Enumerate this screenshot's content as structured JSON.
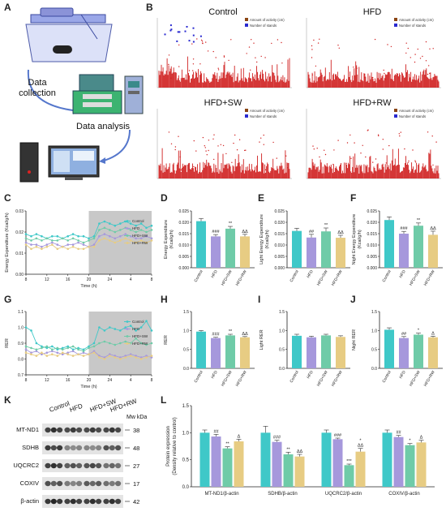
{
  "panel_letters": [
    "A",
    "B",
    "C",
    "D",
    "E",
    "F",
    "G",
    "H",
    "I",
    "J",
    "K",
    "L"
  ],
  "panelA": {
    "data_collection": "Data\ncollection",
    "data_analysis": "Data analysis"
  },
  "panelB": {
    "legend": [
      "Amount of activity (cm)",
      "Number of stands"
    ],
    "titles": [
      "Control",
      "HFD",
      "HFD+SW",
      "HFD+RW"
    ]
  },
  "colors": {
    "control": "#3fc8c8",
    "hfd": "#a698dc",
    "hfd_sw": "#6fcba8",
    "hfd_rw": "#e7cc83",
    "activity": "#d02020",
    "stands": "#2a2ad0",
    "night": "#c8c8c8"
  },
  "groups": [
    "Control",
    "HFD",
    "HFD+SW",
    "HFD+RW"
  ],
  "chart_data": [
    {
      "id": "C",
      "type": "line",
      "ylabel": "Energy Expenditure (Kcal/g/h)",
      "xlabel": "Time (h)",
      "xticks": [
        "8",
        "12",
        "16",
        "20",
        "24",
        "4",
        "8"
      ],
      "ylim": [
        0,
        0.03
      ],
      "yticks": [
        "0.00",
        "0.01",
        "0.02",
        "0.03"
      ],
      "series": [
        {
          "name": "Control",
          "values": [
            0.019,
            0.018,
            0.019,
            0.018,
            0.017,
            0.018,
            0.018,
            0.017,
            0.018,
            0.019,
            0.018,
            0.018,
            0.017,
            0.018,
            0.024,
            0.025,
            0.024,
            0.023,
            0.024,
            0.025,
            0.024,
            0.023,
            0.024,
            0.022,
            0.023
          ]
        },
        {
          "name": "HFD",
          "values": [
            0.015,
            0.014,
            0.014,
            0.013,
            0.014,
            0.015,
            0.014,
            0.013,
            0.014,
            0.014,
            0.015,
            0.014,
            0.013,
            0.014,
            0.018,
            0.019,
            0.018,
            0.017,
            0.018,
            0.019,
            0.018,
            0.017,
            0.017,
            0.018,
            0.017
          ]
        },
        {
          "name": "HFD+SW",
          "values": [
            0.017,
            0.016,
            0.017,
            0.016,
            0.017,
            0.016,
            0.016,
            0.017,
            0.016,
            0.017,
            0.016,
            0.015,
            0.016,
            0.017,
            0.021,
            0.022,
            0.021,
            0.02,
            0.021,
            0.022,
            0.021,
            0.02,
            0.021,
            0.02,
            0.021
          ]
        },
        {
          "name": "HFD+RW",
          "values": [
            0.014,
            0.012,
            0.013,
            0.012,
            0.013,
            0.014,
            0.012,
            0.013,
            0.012,
            0.013,
            0.012,
            0.012,
            0.013,
            0.013,
            0.016,
            0.017,
            0.016,
            0.015,
            0.016,
            0.017,
            0.016,
            0.015,
            0.016,
            0.015,
            0.016
          ]
        }
      ]
    },
    {
      "id": "D",
      "type": "bar",
      "ylabel": "Energy Expenditure (Kcal/g/h)",
      "ylim": [
        0,
        0.025
      ],
      "yticks": [
        "0.000",
        "0.005",
        "0.010",
        "0.015",
        "0.020",
        "0.025"
      ],
      "values": [
        0.0205,
        0.0138,
        0.0172,
        0.0138
      ],
      "errors": [
        0.0012,
        0.0008,
        0.001,
        0.0009
      ],
      "marks": [
        "",
        "###",
        "**",
        "ΔΔ"
      ]
    },
    {
      "id": "E",
      "type": "bar",
      "ylabel": "Light Energy Expenditure (Kcal/g/h)",
      "ylim": [
        0,
        0.025
      ],
      "yticks": [
        "0.000",
        "0.005",
        "0.010",
        "0.015",
        "0.020",
        "0.025"
      ],
      "values": [
        0.0162,
        0.0133,
        0.016,
        0.0132
      ],
      "errors": [
        0.0012,
        0.0014,
        0.0015,
        0.0011
      ],
      "marks": [
        "",
        "##",
        "**",
        "ΔΔ"
      ]
    },
    {
      "id": "F",
      "type": "bar",
      "ylabel": "Night Energy Expenditure (Kcal/g/h)",
      "ylim": [
        0,
        0.025
      ],
      "yticks": [
        "0.000",
        "0.005",
        "0.010",
        "0.015",
        "0.020",
        "0.025"
      ],
      "values": [
        0.021,
        0.015,
        0.0185,
        0.0145
      ],
      "errors": [
        0.0014,
        0.001,
        0.0012,
        0.0016
      ],
      "marks": [
        "",
        "###",
        "**",
        "ΔΔ"
      ]
    },
    {
      "id": "G",
      "type": "line",
      "ylabel": "RER",
      "xlabel": "Time (h)",
      "xticks": [
        "8",
        "12",
        "16",
        "20",
        "24",
        "4",
        "8"
      ],
      "ylim": [
        0.7,
        1.1
      ],
      "yticks": [
        "0.7",
        "0.8",
        "0.9",
        "1.0",
        "1.1"
      ],
      "series": [
        {
          "name": "Control",
          "values": [
            1.0,
            0.98,
            0.9,
            0.88,
            0.87,
            0.88,
            0.86,
            0.87,
            0.88,
            0.86,
            0.87,
            0.86,
            0.88,
            0.9,
            1.0,
            0.98,
            1.0,
            0.99,
            0.98,
            1.0,
            1.01,
            0.98,
            1.0,
            1.04,
            0.98
          ]
        },
        {
          "name": "HFD",
          "values": [
            0.86,
            0.84,
            0.85,
            0.83,
            0.84,
            0.85,
            0.84,
            0.83,
            0.84,
            0.85,
            0.83,
            0.84,
            0.83,
            0.85,
            0.82,
            0.81,
            0.83,
            0.82,
            0.81,
            0.82,
            0.83,
            0.82,
            0.81,
            0.82,
            0.81
          ]
        },
        {
          "name": "HFD+SW",
          "values": [
            0.88,
            0.87,
            0.86,
            0.87,
            0.88,
            0.86,
            0.87,
            0.86,
            0.87,
            0.88,
            0.86,
            0.85,
            0.87,
            0.88,
            0.9,
            0.91,
            0.9,
            0.89,
            0.9,
            0.91,
            0.9,
            0.93,
            0.9,
            0.89,
            0.9
          ]
        },
        {
          "name": "HFD+RW",
          "values": [
            0.84,
            0.83,
            0.82,
            0.84,
            0.82,
            0.83,
            0.82,
            0.84,
            0.83,
            0.82,
            0.83,
            0.82,
            0.83,
            0.84,
            0.81,
            0.8,
            0.82,
            0.81,
            0.8,
            0.81,
            0.82,
            0.81,
            0.8,
            0.81,
            0.82
          ]
        }
      ]
    },
    {
      "id": "H",
      "type": "bar",
      "ylabel": "RER",
      "ylim": [
        0,
        1.5
      ],
      "yticks": [
        "0.0",
        "0.5",
        "1.0",
        "1.5"
      ],
      "values": [
        0.97,
        0.8,
        0.87,
        0.82
      ],
      "errors": [
        0.03,
        0.02,
        0.03,
        0.02
      ],
      "marks": [
        "",
        "###",
        "**",
        "ΔΔ"
      ]
    },
    {
      "id": "I",
      "type": "bar",
      "ylabel": "Light RER",
      "ylim": [
        0,
        1.5
      ],
      "yticks": [
        "0.0",
        "0.5",
        "1.0",
        "1.5"
      ],
      "values": [
        0.86,
        0.82,
        0.87,
        0.83
      ],
      "errors": [
        0.04,
        0.03,
        0.03,
        0.03
      ],
      "marks": [
        "",
        "",
        "",
        ""
      ]
    },
    {
      "id": "J",
      "type": "bar",
      "ylabel": "Night RER",
      "ylim": [
        0,
        1.5
      ],
      "yticks": [
        "0.0",
        "0.5",
        "1.0",
        "1.5"
      ],
      "values": [
        1.02,
        0.8,
        0.89,
        0.82
      ],
      "errors": [
        0.05,
        0.04,
        0.04,
        0.03
      ],
      "marks": [
        "",
        "##",
        "*",
        "Δ"
      ]
    },
    {
      "id": "L",
      "type": "bar",
      "ylabel": "Protein expression\n(Density relative to control)",
      "ylim": [
        0,
        1.5
      ],
      "yticks": [
        "0.0",
        "0.5",
        "1.0",
        "1.5"
      ],
      "categories": [
        "MT-ND1/β-actin",
        "SDHB/β-actin",
        "UQCRC2/β-actin",
        "COXIV/β-actin"
      ],
      "series": [
        {
          "name": "Control",
          "values": [
            1.0,
            1.0,
            1.0,
            1.0
          ],
          "errors": [
            0.05,
            0.12,
            0.05,
            0.05
          ]
        },
        {
          "name": "HFD",
          "values": [
            0.93,
            0.83,
            0.88,
            0.92
          ],
          "errors": [
            0.04,
            0.03,
            0.02,
            0.03
          ]
        },
        {
          "name": "HFD+SW",
          "values": [
            0.71,
            0.6,
            0.4,
            0.77
          ],
          "errors": [
            0.03,
            0.04,
            0.02,
            0.03
          ]
        },
        {
          "name": "HFD+RW",
          "values": [
            0.84,
            0.56,
            0.65,
            0.82
          ],
          "errors": [
            0.04,
            0.04,
            0.06,
            0.04
          ]
        }
      ],
      "marks": [
        [
          "",
          "##",
          "**",
          "Δ"
        ],
        [
          "",
          "###",
          "**",
          "ΔΔ"
        ],
        [
          "",
          "###",
          "***",
          "*\nΔΔ"
        ],
        [
          "",
          "##",
          "*",
          "Δ"
        ]
      ]
    }
  ],
  "panelK": {
    "col_labels": [
      "Control",
      "HFD",
      "HFD+SW",
      "HFD+RW"
    ],
    "mw_header": "Mw kDa",
    "rows": [
      {
        "name": "MT-ND1",
        "kda": "38"
      },
      {
        "name": "SDHB",
        "kda": "48"
      },
      {
        "name": "UQCRC2",
        "kda": "27"
      },
      {
        "name": "COXIV",
        "kda": "17"
      },
      {
        "name": "β-actin",
        "kda": "42"
      }
    ]
  }
}
